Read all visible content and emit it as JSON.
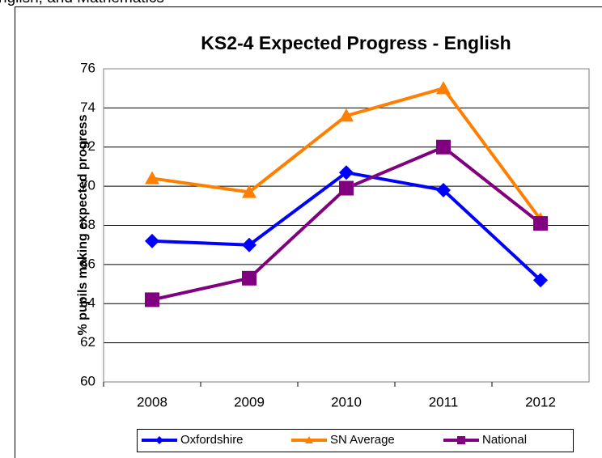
{
  "caption": "nglish, and Mathematics",
  "chart_data": {
    "type": "line",
    "title": "KS2-4 Expected Progress - English",
    "ylabel": "% pupils making expected progress",
    "categories": [
      "2008",
      "2009",
      "2010",
      "2011",
      "2012"
    ],
    "series": [
      {
        "name": "Oxfordshire",
        "color": "#0000ff",
        "marker": "diamond",
        "values": [
          67.2,
          67.0,
          70.7,
          69.8,
          65.2
        ]
      },
      {
        "name": "SN Average",
        "color": "#ff7f00",
        "marker": "triangle",
        "values": [
          70.4,
          69.7,
          73.6,
          75.0,
          68.3
        ]
      },
      {
        "name": "National",
        "color": "#800080",
        "marker": "square",
        "values": [
          64.2,
          65.3,
          69.9,
          72.0,
          68.1
        ]
      }
    ],
    "ylim": [
      60,
      76
    ],
    "yticks": [
      60,
      62,
      64,
      66,
      68,
      70,
      72,
      74,
      76
    ],
    "grid": true,
    "legend": "bottom"
  }
}
